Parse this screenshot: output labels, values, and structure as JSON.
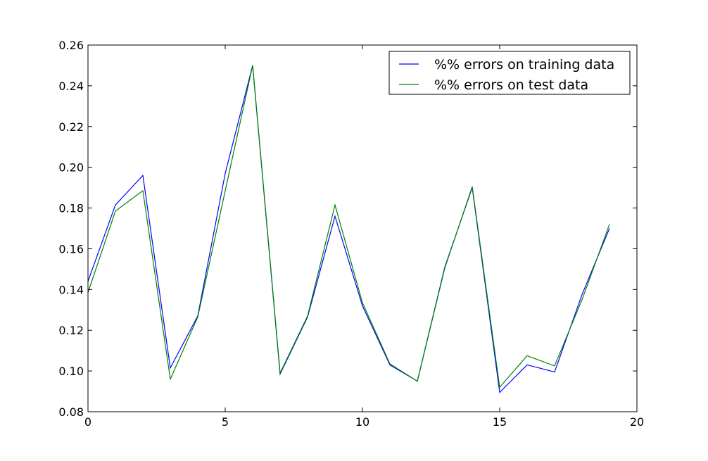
{
  "chart_data": {
    "type": "line",
    "title": "",
    "xlabel": "",
    "ylabel": "",
    "xlim": [
      0,
      20
    ],
    "ylim": [
      0.08,
      0.26
    ],
    "xticks": [
      0,
      5,
      10,
      15,
      20
    ],
    "xtick_labels": [
      "0",
      "5",
      "10",
      "15",
      "20"
    ],
    "yticks": [
      0.08,
      0.1,
      0.12,
      0.14,
      0.16,
      0.18,
      0.2,
      0.22,
      0.24,
      0.26
    ],
    "ytick_labels": [
      "0.08",
      "0.10",
      "0.12",
      "0.14",
      "0.16",
      "0.18",
      "0.20",
      "0.22",
      "0.24",
      "0.26"
    ],
    "grid": false,
    "legend_position": "top-right",
    "x": [
      0,
      1,
      2,
      3,
      4,
      5,
      6,
      7,
      8,
      9,
      10,
      11,
      12,
      13,
      14,
      15,
      16,
      17,
      18,
      19
    ],
    "series": [
      {
        "name": "%% errors on training data",
        "color": "#0000ff",
        "values": [
          0.144,
          0.1815,
          0.196,
          0.1015,
          0.127,
          0.197,
          0.25,
          0.0985,
          0.1265,
          0.176,
          0.132,
          0.103,
          0.095,
          0.151,
          0.19,
          0.0895,
          0.103,
          0.0995,
          0.1375,
          0.17
        ]
      },
      {
        "name": "%% errors on test data",
        "color": "#008000",
        "values": [
          0.1385,
          0.1785,
          0.1885,
          0.096,
          0.1265,
          0.1885,
          0.25,
          0.099,
          0.127,
          0.1815,
          0.1335,
          0.1035,
          0.095,
          0.1505,
          0.1905,
          0.092,
          0.1075,
          0.1025,
          0.135,
          0.172
        ]
      }
    ]
  }
}
